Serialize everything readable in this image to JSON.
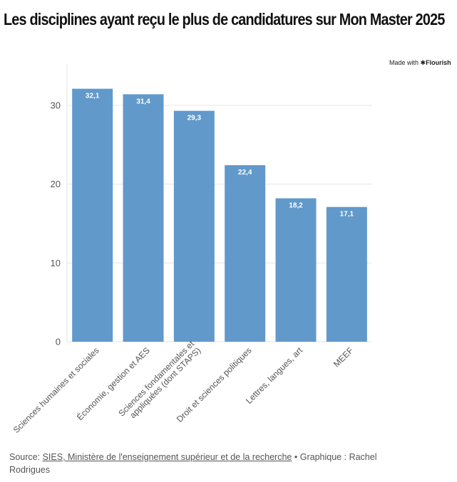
{
  "title": "Les disciplines ayant reçu le plus de candidatures sur Mon Master 2025",
  "made_with": {
    "prefix": "Made with",
    "brand": "Flourish"
  },
  "footer": {
    "source_label": "Source:",
    "source_link": "SIES, Ministère de l'enseignement supérieur et de la recherche",
    "separator": "•",
    "credit_label": "Graphique :",
    "credit_name": "Rachel Rodrigues"
  },
  "colors": {
    "bar": "#6199cb",
    "grid": "#e6e6e6",
    "axis_text": "#555555",
    "title": "#111111"
  },
  "chart_data": {
    "type": "bar",
    "title": "Les disciplines ayant reçu le plus de candidatures sur Mon Master 2025",
    "xlabel": "",
    "ylabel": "",
    "ylim": [
      0,
      35
    ],
    "yticks": [
      0,
      10,
      20,
      30
    ],
    "categories": [
      "Sciences humaines et sociales",
      "Économie, gestion et AES",
      "Sciences fondamentales et appliquées (dont STAPS)",
      "Droit et sciences politiques",
      "Lettres, langues, art",
      "MEEF"
    ],
    "category_lines": [
      [
        "Sciences humaines et sociales"
      ],
      [
        "Économie, gestion et AES"
      ],
      [
        "Sciences fondamentales et",
        "appliquées (dont STAPS)"
      ],
      [
        "Droit et sciences politiques"
      ],
      [
        "Lettres, langues, art"
      ],
      [
        "MEEF"
      ]
    ],
    "values": [
      32.1,
      31.4,
      29.3,
      22.4,
      18.2,
      17.1
    ],
    "value_labels": [
      "32,1",
      "31,4",
      "29,3",
      "22,4",
      "18,2",
      "17,1"
    ],
    "grid": true,
    "legend": "none"
  }
}
